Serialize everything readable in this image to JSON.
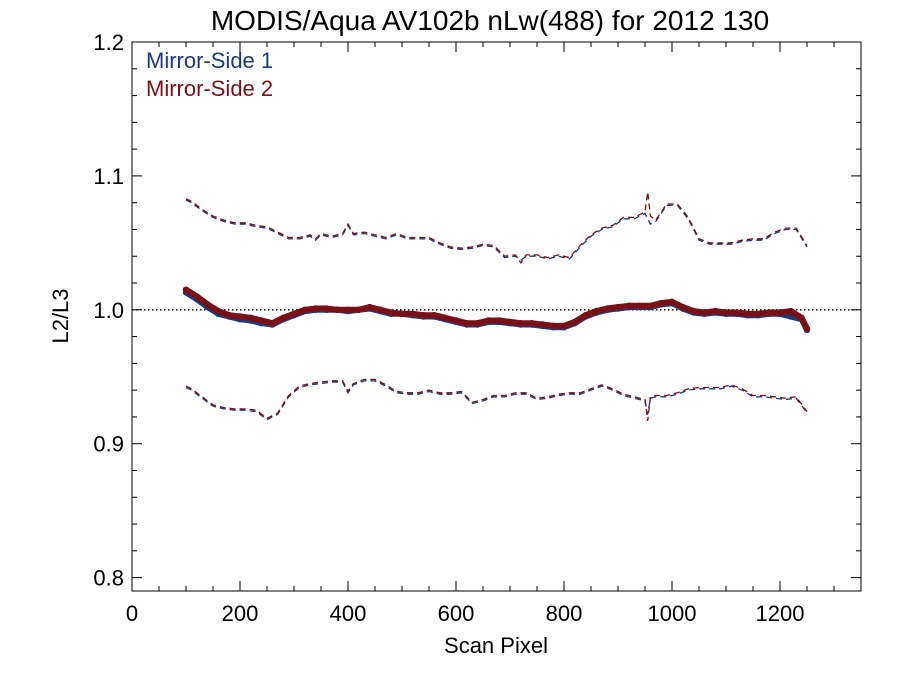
{
  "chart_data": {
    "type": "line",
    "title": "MODIS/Aqua AV102b nLw(488) for 2012 130",
    "xlabel": "Scan Pixel",
    "ylabel": "L2/L3",
    "xlim": [
      0,
      1350
    ],
    "ylim": [
      0.79,
      1.2
    ],
    "x_ticks": [
      0,
      200,
      400,
      600,
      800,
      1000,
      1200
    ],
    "x_tick_labels": [
      "0",
      "200",
      "400",
      "600",
      "800",
      "1000",
      "1200"
    ],
    "x_minor_step": 50,
    "y_ticks": [
      0.8,
      0.9,
      1.0,
      1.1,
      1.2
    ],
    "y_tick_labels": [
      "0.8",
      "0.9",
      "1.0",
      "1.1",
      "1.2"
    ],
    "y_minor_step": 0.02,
    "reference_line": 1.0,
    "legend_position": "top-left",
    "colors": {
      "ms1": "#1a3a7a",
      "ms2": "#7a1016"
    },
    "series": [
      {
        "name": "Mirror-Side 1",
        "color": "#1a3a7a",
        "ratio": {
          "x": [
            100,
            120,
            140,
            160,
            180,
            200,
            220,
            240,
            260,
            280,
            300,
            320,
            340,
            360,
            380,
            400,
            420,
            440,
            460,
            480,
            500,
            520,
            540,
            560,
            580,
            600,
            620,
            640,
            660,
            680,
            700,
            720,
            740,
            760,
            780,
            800,
            820,
            840,
            860,
            880,
            900,
            920,
            940,
            960,
            980,
            1000,
            1020,
            1040,
            1060,
            1080,
            1100,
            1120,
            1140,
            1160,
            1180,
            1200,
            1220,
            1240,
            1250
          ],
          "y": [
            1.013,
            1.008,
            1.002,
            0.997,
            0.995,
            0.993,
            0.992,
            0.99,
            0.989,
            0.993,
            0.996,
            0.999,
            1.0,
            1.0,
            1.0,
            0.999,
            1.0,
            1.001,
            0.999,
            0.997,
            0.997,
            0.996,
            0.995,
            0.995,
            0.993,
            0.991,
            0.989,
            0.989,
            0.991,
            0.991,
            0.99,
            0.989,
            0.989,
            0.988,
            0.987,
            0.987,
            0.99,
            0.995,
            0.998,
            1.0,
            1.001,
            1.002,
            1.002,
            1.002,
            1.004,
            1.005,
            1.001,
            0.998,
            0.997,
            0.998,
            0.997,
            0.997,
            0.996,
            0.996,
            0.997,
            0.997,
            0.995,
            0.993,
            0.985
          ]
        },
        "upper": {
          "x": [
            100,
            110,
            130,
            150,
            170,
            190,
            210,
            230,
            250,
            270,
            290,
            310,
            330,
            340,
            350,
            370,
            390,
            400,
            410,
            430,
            450,
            470,
            490,
            510,
            530,
            550,
            570,
            590,
            610,
            630,
            650,
            670,
            690,
            710,
            720,
            730,
            750,
            770,
            790,
            810,
            830,
            850,
            870,
            890,
            910,
            930,
            950,
            960,
            970,
            990,
            1010,
            1030,
            1050,
            1070,
            1090,
            1110,
            1130,
            1150,
            1170,
            1190,
            1210,
            1230,
            1250
          ],
          "y": [
            1.082,
            1.08,
            1.074,
            1.069,
            1.066,
            1.064,
            1.064,
            1.062,
            1.061,
            1.057,
            1.053,
            1.053,
            1.055,
            1.052,
            1.056,
            1.054,
            1.056,
            1.063,
            1.056,
            1.057,
            1.055,
            1.053,
            1.056,
            1.053,
            1.053,
            1.053,
            1.049,
            1.046,
            1.045,
            1.046,
            1.048,
            1.047,
            1.039,
            1.04,
            1.037,
            1.04,
            1.04,
            1.038,
            1.04,
            1.038,
            1.047,
            1.055,
            1.06,
            1.062,
            1.068,
            1.068,
            1.072,
            1.064,
            1.066,
            1.078,
            1.078,
            1.068,
            1.052,
            1.049,
            1.049,
            1.049,
            1.051,
            1.052,
            1.052,
            1.057,
            1.06,
            1.06,
            1.047
          ]
        },
        "lower": {
          "x": [
            100,
            110,
            130,
            150,
            170,
            190,
            210,
            230,
            250,
            270,
            290,
            310,
            330,
            350,
            370,
            390,
            400,
            410,
            430,
            450,
            470,
            490,
            510,
            530,
            550,
            570,
            590,
            610,
            630,
            650,
            670,
            690,
            710,
            730,
            750,
            770,
            790,
            810,
            830,
            850,
            870,
            890,
            910,
            930,
            950,
            955,
            960,
            970,
            990,
            1010,
            1030,
            1050,
            1070,
            1090,
            1110,
            1130,
            1150,
            1170,
            1190,
            1210,
            1230,
            1250
          ],
          "y": [
            0.942,
            0.94,
            0.934,
            0.928,
            0.926,
            0.925,
            0.925,
            0.924,
            0.918,
            0.922,
            0.935,
            0.942,
            0.944,
            0.945,
            0.946,
            0.946,
            0.938,
            0.944,
            0.947,
            0.947,
            0.943,
            0.938,
            0.937,
            0.937,
            0.939,
            0.937,
            0.937,
            0.938,
            0.93,
            0.932,
            0.935,
            0.935,
            0.937,
            0.937,
            0.933,
            0.934,
            0.936,
            0.937,
            0.937,
            0.94,
            0.943,
            0.94,
            0.936,
            0.934,
            0.932,
            0.922,
            0.934,
            0.935,
            0.935,
            0.937,
            0.94,
            0.941,
            0.941,
            0.941,
            0.943,
            0.94,
            0.935,
            0.935,
            0.934,
            0.933,
            0.934,
            0.923
          ]
        }
      },
      {
        "name": "Mirror-Side 2",
        "color": "#7a1016",
        "ratio": {
          "x": [
            100,
            120,
            140,
            160,
            180,
            200,
            220,
            240,
            260,
            280,
            300,
            320,
            340,
            360,
            380,
            400,
            420,
            440,
            460,
            480,
            500,
            520,
            540,
            560,
            580,
            600,
            620,
            640,
            660,
            680,
            700,
            720,
            740,
            760,
            780,
            800,
            820,
            840,
            860,
            880,
            900,
            920,
            940,
            960,
            980,
            1000,
            1020,
            1040,
            1060,
            1080,
            1100,
            1120,
            1140,
            1160,
            1180,
            1200,
            1220,
            1240,
            1250
          ],
          "y": [
            1.015,
            1.01,
            1.004,
            0.999,
            0.996,
            0.995,
            0.994,
            0.992,
            0.99,
            0.994,
            0.997,
            1.0,
            1.001,
            1.001,
            1.0,
            1.0,
            1.0,
            1.002,
            1.0,
            0.998,
            0.997,
            0.997,
            0.996,
            0.996,
            0.994,
            0.992,
            0.99,
            0.99,
            0.992,
            0.992,
            0.991,
            0.99,
            0.99,
            0.989,
            0.988,
            0.988,
            0.991,
            0.996,
            0.999,
            1.001,
            1.002,
            1.003,
            1.003,
            1.003,
            1.005,
            1.006,
            1.002,
            0.999,
            0.998,
            0.999,
            0.998,
            0.998,
            0.997,
            0.997,
            0.998,
            0.998,
            0.999,
            0.994,
            0.986
          ]
        },
        "upper": {
          "x": [
            100,
            110,
            130,
            150,
            170,
            190,
            210,
            230,
            250,
            270,
            290,
            310,
            330,
            340,
            350,
            370,
            390,
            400,
            410,
            430,
            450,
            470,
            490,
            510,
            530,
            550,
            570,
            590,
            610,
            630,
            650,
            670,
            690,
            710,
            720,
            730,
            750,
            770,
            790,
            810,
            830,
            850,
            870,
            890,
            910,
            930,
            950,
            955,
            960,
            970,
            990,
            1010,
            1030,
            1050,
            1070,
            1090,
            1110,
            1130,
            1150,
            1170,
            1190,
            1210,
            1230,
            1250
          ],
          "y": [
            1.083,
            1.081,
            1.075,
            1.07,
            1.067,
            1.065,
            1.065,
            1.063,
            1.062,
            1.058,
            1.054,
            1.054,
            1.056,
            1.053,
            1.057,
            1.055,
            1.057,
            1.064,
            1.057,
            1.058,
            1.056,
            1.054,
            1.057,
            1.054,
            1.054,
            1.054,
            1.05,
            1.047,
            1.046,
            1.047,
            1.049,
            1.048,
            1.04,
            1.041,
            1.035,
            1.041,
            1.041,
            1.039,
            1.041,
            1.039,
            1.048,
            1.056,
            1.061,
            1.063,
            1.069,
            1.069,
            1.073,
            1.088,
            1.07,
            1.067,
            1.079,
            1.079,
            1.069,
            1.053,
            1.05,
            1.05,
            1.05,
            1.052,
            1.053,
            1.053,
            1.058,
            1.061,
            1.061,
            1.048
          ]
        },
        "lower": {
          "x": [
            100,
            110,
            130,
            150,
            170,
            190,
            210,
            230,
            250,
            270,
            290,
            310,
            330,
            350,
            370,
            390,
            400,
            410,
            430,
            450,
            470,
            490,
            510,
            530,
            550,
            570,
            590,
            610,
            630,
            650,
            670,
            690,
            710,
            730,
            750,
            770,
            790,
            810,
            830,
            850,
            870,
            890,
            910,
            930,
            950,
            955,
            960,
            970,
            990,
            1010,
            1030,
            1050,
            1070,
            1090,
            1110,
            1130,
            1150,
            1170,
            1190,
            1210,
            1230,
            1250
          ],
          "y": [
            0.943,
            0.941,
            0.935,
            0.929,
            0.927,
            0.926,
            0.926,
            0.925,
            0.919,
            0.923,
            0.936,
            0.943,
            0.945,
            0.946,
            0.947,
            0.947,
            0.939,
            0.945,
            0.948,
            0.948,
            0.944,
            0.939,
            0.938,
            0.938,
            0.94,
            0.938,
            0.938,
            0.939,
            0.931,
            0.933,
            0.936,
            0.936,
            0.938,
            0.938,
            0.934,
            0.935,
            0.937,
            0.938,
            0.938,
            0.941,
            0.944,
            0.941,
            0.937,
            0.935,
            0.933,
            0.917,
            0.935,
            0.936,
            0.936,
            0.938,
            0.941,
            0.942,
            0.942,
            0.942,
            0.944,
            0.941,
            0.936,
            0.936,
            0.935,
            0.934,
            0.935,
            0.924
          ]
        }
      }
    ]
  }
}
